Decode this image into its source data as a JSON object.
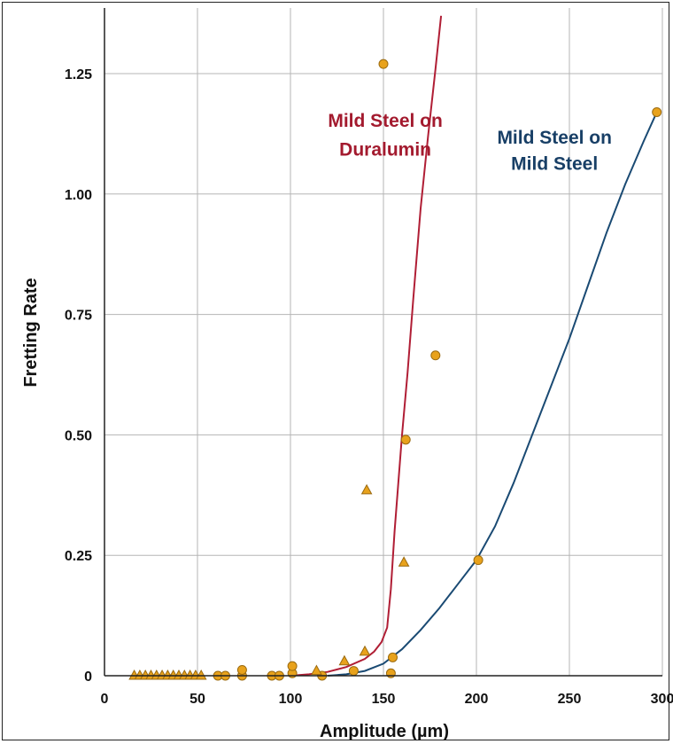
{
  "chart_data": {
    "type": "scatter",
    "title": "",
    "xlabel": "Amplitude (µm)",
    "ylabel": "Fretting Rate",
    "xlim": [
      0,
      300
    ],
    "ylim": [
      0,
      1.375
    ],
    "x_ticks": [
      "0",
      "50",
      "100",
      "150",
      "200",
      "250",
      "300"
    ],
    "y_ticks": [
      "0",
      "0.25",
      "0.50",
      "0.75",
      "1.00",
      "1.25"
    ],
    "grid": true,
    "legend": "none",
    "annotations": [
      {
        "lines": [
          "Mild Steel on",
          "Duralumin"
        ],
        "color": "#a31a2e",
        "x": 151,
        "y": [
          1.14,
          1.08
        ]
      },
      {
        "lines": [
          "Mild Steel on",
          "Mild Steel"
        ],
        "color": "#183f66",
        "x": 242,
        "y": [
          1.105,
          1.05
        ]
      }
    ],
    "colors": {
      "duralumin_curve": "#b01e35",
      "steel_curve": "#1a4a73",
      "marker_fill": "#e8a21c",
      "marker_edge": "#9a6a10",
      "grid": "#b5b5b5"
    },
    "series": [
      {
        "marker": "circle",
        "points": [
          [
            61,
            0
          ],
          [
            65,
            0
          ],
          [
            74,
            0
          ],
          [
            74,
            0.012
          ],
          [
            90,
            0
          ],
          [
            94,
            0
          ],
          [
            101,
            0.005
          ],
          [
            101,
            0.02
          ],
          [
            117,
            0
          ],
          [
            134,
            0.01
          ],
          [
            150,
            1.27
          ],
          [
            154,
            0.005
          ],
          [
            155,
            0.038
          ],
          [
            162,
            0.49
          ],
          [
            178,
            0.665
          ],
          [
            201,
            0.24
          ],
          [
            297,
            1.17
          ]
        ]
      },
      {
        "marker": "triangle",
        "points": [
          [
            16,
            0
          ],
          [
            19,
            0
          ],
          [
            22,
            0
          ],
          [
            25,
            0
          ],
          [
            28,
            0
          ],
          [
            31,
            0
          ],
          [
            34,
            0
          ],
          [
            37,
            0
          ],
          [
            40,
            0
          ],
          [
            43,
            0
          ],
          [
            46,
            0
          ],
          [
            49,
            0
          ],
          [
            52,
            0
          ],
          [
            114,
            0.01
          ],
          [
            129,
            0.03
          ],
          [
            140,
            0.05
          ],
          [
            141,
            0.385
          ],
          [
            161,
            0.235
          ]
        ]
      },
      {
        "type": "line",
        "curve": "Mild Steel on Duralumin",
        "points": [
          [
            100,
            0
          ],
          [
            110,
            0.003
          ],
          [
            120,
            0.008
          ],
          [
            130,
            0.018
          ],
          [
            140,
            0.035
          ],
          [
            145,
            0.05
          ],
          [
            149,
            0.07
          ],
          [
            152,
            0.1
          ],
          [
            154,
            0.18
          ],
          [
            156,
            0.3
          ],
          [
            158,
            0.4
          ],
          [
            160,
            0.5
          ],
          [
            163,
            0.63
          ],
          [
            166,
            0.78
          ],
          [
            170,
            0.97
          ],
          [
            174,
            1.12
          ],
          [
            178,
            1.26
          ],
          [
            181,
            1.37
          ]
        ]
      },
      {
        "type": "line",
        "curve": "Mild Steel on Mild Steel",
        "points": [
          [
            120,
            0
          ],
          [
            130,
            0.003
          ],
          [
            140,
            0.01
          ],
          [
            150,
            0.025
          ],
          [
            160,
            0.055
          ],
          [
            170,
            0.095
          ],
          [
            180,
            0.14
          ],
          [
            190,
            0.19
          ],
          [
            200,
            0.24
          ],
          [
            210,
            0.31
          ],
          [
            220,
            0.4
          ],
          [
            230,
            0.5
          ],
          [
            240,
            0.6
          ],
          [
            250,
            0.7
          ],
          [
            260,
            0.81
          ],
          [
            270,
            0.92
          ],
          [
            280,
            1.02
          ],
          [
            290,
            1.11
          ],
          [
            297,
            1.17
          ]
        ]
      }
    ]
  }
}
